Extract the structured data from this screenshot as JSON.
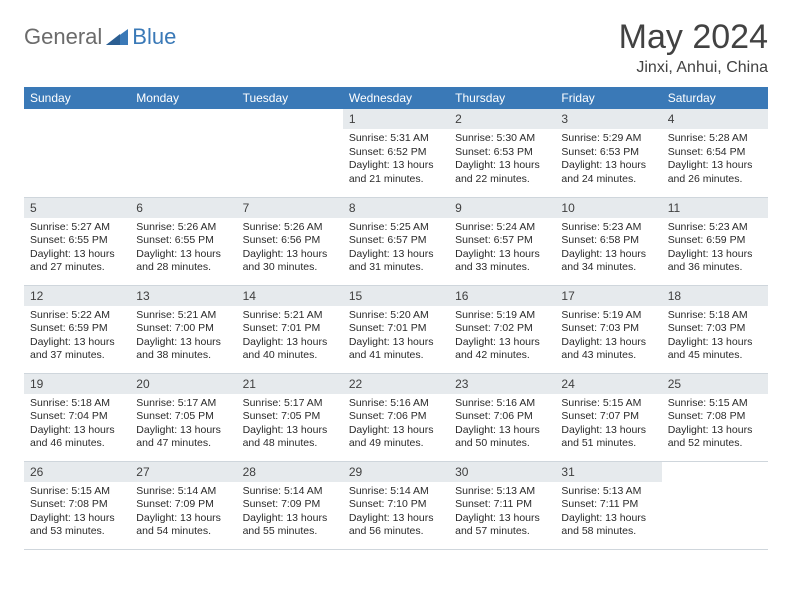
{
  "brand": {
    "general": "General",
    "blue": "Blue"
  },
  "title": "May 2024",
  "location": "Jinxi, Anhui, China",
  "colors": {
    "header_bg": "#3a79b7",
    "header_text": "#ffffff",
    "daynum_bg": "#e6eaed",
    "border": "#cfd6dc",
    "body_text": "#2a2a2a",
    "title_text": "#424242",
    "logo_gray": "#6b6b6b",
    "logo_blue": "#3a79b7"
  },
  "weekdays": [
    "Sunday",
    "Monday",
    "Tuesday",
    "Wednesday",
    "Thursday",
    "Friday",
    "Saturday"
  ],
  "cells": [
    {
      "n": "",
      "sr": "",
      "ss": "",
      "dl": ""
    },
    {
      "n": "",
      "sr": "",
      "ss": "",
      "dl": ""
    },
    {
      "n": "",
      "sr": "",
      "ss": "",
      "dl": ""
    },
    {
      "n": "1",
      "sr": "Sunrise: 5:31 AM",
      "ss": "Sunset: 6:52 PM",
      "dl": "Daylight: 13 hours and 21 minutes."
    },
    {
      "n": "2",
      "sr": "Sunrise: 5:30 AM",
      "ss": "Sunset: 6:53 PM",
      "dl": "Daylight: 13 hours and 22 minutes."
    },
    {
      "n": "3",
      "sr": "Sunrise: 5:29 AM",
      "ss": "Sunset: 6:53 PM",
      "dl": "Daylight: 13 hours and 24 minutes."
    },
    {
      "n": "4",
      "sr": "Sunrise: 5:28 AM",
      "ss": "Sunset: 6:54 PM",
      "dl": "Daylight: 13 hours and 26 minutes."
    },
    {
      "n": "5",
      "sr": "Sunrise: 5:27 AM",
      "ss": "Sunset: 6:55 PM",
      "dl": "Daylight: 13 hours and 27 minutes."
    },
    {
      "n": "6",
      "sr": "Sunrise: 5:26 AM",
      "ss": "Sunset: 6:55 PM",
      "dl": "Daylight: 13 hours and 28 minutes."
    },
    {
      "n": "7",
      "sr": "Sunrise: 5:26 AM",
      "ss": "Sunset: 6:56 PM",
      "dl": "Daylight: 13 hours and 30 minutes."
    },
    {
      "n": "8",
      "sr": "Sunrise: 5:25 AM",
      "ss": "Sunset: 6:57 PM",
      "dl": "Daylight: 13 hours and 31 minutes."
    },
    {
      "n": "9",
      "sr": "Sunrise: 5:24 AM",
      "ss": "Sunset: 6:57 PM",
      "dl": "Daylight: 13 hours and 33 minutes."
    },
    {
      "n": "10",
      "sr": "Sunrise: 5:23 AM",
      "ss": "Sunset: 6:58 PM",
      "dl": "Daylight: 13 hours and 34 minutes."
    },
    {
      "n": "11",
      "sr": "Sunrise: 5:23 AM",
      "ss": "Sunset: 6:59 PM",
      "dl": "Daylight: 13 hours and 36 minutes."
    },
    {
      "n": "12",
      "sr": "Sunrise: 5:22 AM",
      "ss": "Sunset: 6:59 PM",
      "dl": "Daylight: 13 hours and 37 minutes."
    },
    {
      "n": "13",
      "sr": "Sunrise: 5:21 AM",
      "ss": "Sunset: 7:00 PM",
      "dl": "Daylight: 13 hours and 38 minutes."
    },
    {
      "n": "14",
      "sr": "Sunrise: 5:21 AM",
      "ss": "Sunset: 7:01 PM",
      "dl": "Daylight: 13 hours and 40 minutes."
    },
    {
      "n": "15",
      "sr": "Sunrise: 5:20 AM",
      "ss": "Sunset: 7:01 PM",
      "dl": "Daylight: 13 hours and 41 minutes."
    },
    {
      "n": "16",
      "sr": "Sunrise: 5:19 AM",
      "ss": "Sunset: 7:02 PM",
      "dl": "Daylight: 13 hours and 42 minutes."
    },
    {
      "n": "17",
      "sr": "Sunrise: 5:19 AM",
      "ss": "Sunset: 7:03 PM",
      "dl": "Daylight: 13 hours and 43 minutes."
    },
    {
      "n": "18",
      "sr": "Sunrise: 5:18 AM",
      "ss": "Sunset: 7:03 PM",
      "dl": "Daylight: 13 hours and 45 minutes."
    },
    {
      "n": "19",
      "sr": "Sunrise: 5:18 AM",
      "ss": "Sunset: 7:04 PM",
      "dl": "Daylight: 13 hours and 46 minutes."
    },
    {
      "n": "20",
      "sr": "Sunrise: 5:17 AM",
      "ss": "Sunset: 7:05 PM",
      "dl": "Daylight: 13 hours and 47 minutes."
    },
    {
      "n": "21",
      "sr": "Sunrise: 5:17 AM",
      "ss": "Sunset: 7:05 PM",
      "dl": "Daylight: 13 hours and 48 minutes."
    },
    {
      "n": "22",
      "sr": "Sunrise: 5:16 AM",
      "ss": "Sunset: 7:06 PM",
      "dl": "Daylight: 13 hours and 49 minutes."
    },
    {
      "n": "23",
      "sr": "Sunrise: 5:16 AM",
      "ss": "Sunset: 7:06 PM",
      "dl": "Daylight: 13 hours and 50 minutes."
    },
    {
      "n": "24",
      "sr": "Sunrise: 5:15 AM",
      "ss": "Sunset: 7:07 PM",
      "dl": "Daylight: 13 hours and 51 minutes."
    },
    {
      "n": "25",
      "sr": "Sunrise: 5:15 AM",
      "ss": "Sunset: 7:08 PM",
      "dl": "Daylight: 13 hours and 52 minutes."
    },
    {
      "n": "26",
      "sr": "Sunrise: 5:15 AM",
      "ss": "Sunset: 7:08 PM",
      "dl": "Daylight: 13 hours and 53 minutes."
    },
    {
      "n": "27",
      "sr": "Sunrise: 5:14 AM",
      "ss": "Sunset: 7:09 PM",
      "dl": "Daylight: 13 hours and 54 minutes."
    },
    {
      "n": "28",
      "sr": "Sunrise: 5:14 AM",
      "ss": "Sunset: 7:09 PM",
      "dl": "Daylight: 13 hours and 55 minutes."
    },
    {
      "n": "29",
      "sr": "Sunrise: 5:14 AM",
      "ss": "Sunset: 7:10 PM",
      "dl": "Daylight: 13 hours and 56 minutes."
    },
    {
      "n": "30",
      "sr": "Sunrise: 5:13 AM",
      "ss": "Sunset: 7:11 PM",
      "dl": "Daylight: 13 hours and 57 minutes."
    },
    {
      "n": "31",
      "sr": "Sunrise: 5:13 AM",
      "ss": "Sunset: 7:11 PM",
      "dl": "Daylight: 13 hours and 58 minutes."
    },
    {
      "n": "",
      "sr": "",
      "ss": "",
      "dl": ""
    }
  ]
}
